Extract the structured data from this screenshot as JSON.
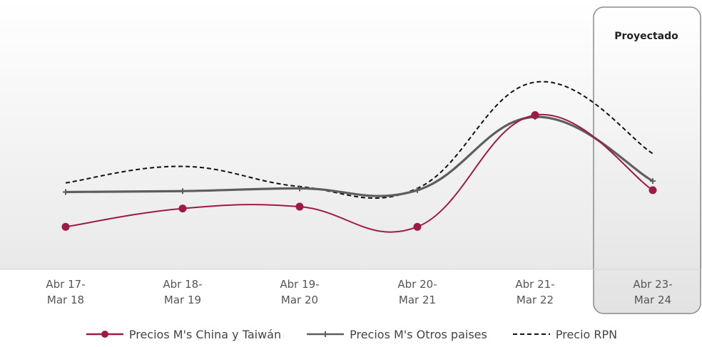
{
  "chart_data": {
    "type": "line",
    "categories": [
      [
        "Abr 17-",
        "Mar 18"
      ],
      [
        "Abr 18-",
        "Mar 19"
      ],
      [
        "Abr 19-",
        "Mar 20"
      ],
      [
        "Abr 20-",
        "Mar 21"
      ],
      [
        "Abr 21-",
        "Mar 22"
      ],
      [
        "Abr 23-",
        "Mar 24"
      ]
    ],
    "projected_label": "Proyectado",
    "projected_category_index": 5,
    "grid": false,
    "legend_position": "bottom",
    "y_axis_values_shown": false,
    "series": [
      {
        "name": "Precios M's China y Taiwán",
        "color": "#9c1a44",
        "marker": "circle",
        "dash": "solid",
        "values": [
          24,
          34,
          35,
          24,
          85,
          44
        ]
      },
      {
        "name": "Precios M's Otros paises",
        "color": "#5e5e5e",
        "marker": "cross",
        "dash": "solid",
        "values": [
          43,
          43.5,
          45,
          44,
          84,
          49
        ]
      },
      {
        "name": "Precio RPN",
        "color": "#111111",
        "marker": "none",
        "dash": "dashed",
        "values": [
          48,
          57,
          46,
          45,
          103,
          64
        ]
      }
    ]
  }
}
